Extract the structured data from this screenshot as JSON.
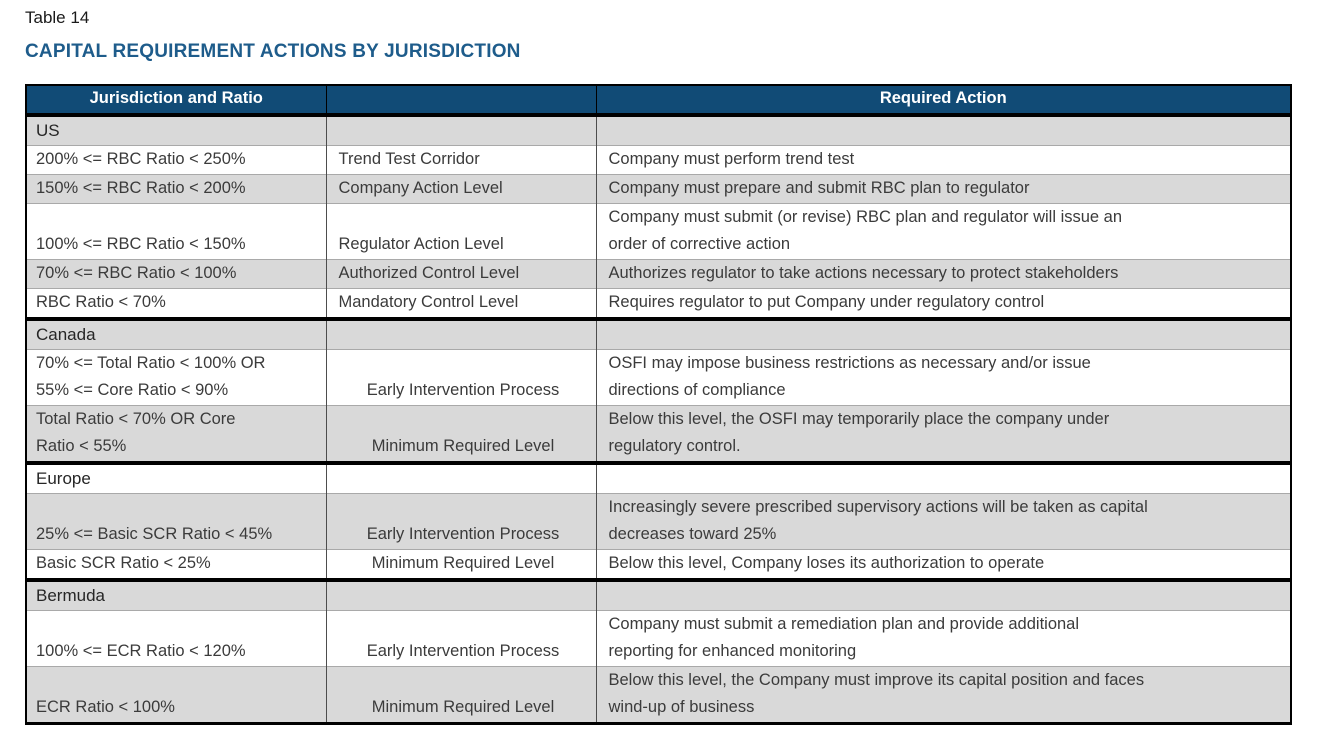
{
  "page": {
    "table_label": "Table 14",
    "title": "CAPITAL REQUIREMENT ACTIONS BY JURISDICTION"
  },
  "colors": {
    "header_bg": "#114B76",
    "title_color": "#1E5C8B",
    "row_shade": "#D9D9D9"
  },
  "table": {
    "headers": {
      "jurisdiction_ratio": "Jurisdiction and Ratio",
      "middle": "",
      "required_action": "Required Action"
    },
    "sections": [
      {
        "name": "US",
        "rows": [
          {
            "ratio": "200% <= RBC Ratio < 250%",
            "level": "Trend Test Corridor",
            "action": "Company must perform trend test",
            "tall": false
          },
          {
            "ratio": "150% <= RBC Ratio < 200%",
            "level": "Company Action Level",
            "action": "Company must prepare and submit RBC plan to regulator",
            "tall": false
          },
          {
            "ratio": "100% <= RBC Ratio < 150%",
            "level": "Regulator Action Level",
            "action": "Company must submit (or revise) RBC plan and regulator will issue an\norder of corrective action",
            "tall": true
          },
          {
            "ratio": "70% <= RBC Ratio < 100%",
            "level": "Authorized Control Level",
            "action": "Authorizes regulator to take actions necessary to protect stakeholders",
            "tall": false
          },
          {
            "ratio": "RBC Ratio < 70%",
            "level": "Mandatory Control Level",
            "action": "Requires regulator to put Company under regulatory control",
            "tall": false
          }
        ]
      },
      {
        "name": "Canada",
        "rows": [
          {
            "ratio": "70% <= Total Ratio < 100% OR\n55% <= Core Ratio < 90%",
            "level": "Early Intervention Process",
            "action": "OSFI may impose business restrictions as necessary and/or issue\ndirections of compliance",
            "tall": true
          },
          {
            "ratio": "Total Ratio < 70% OR Core\nRatio < 55%",
            "level": "Minimum Required Level",
            "action": "Below this level, the OSFI may temporarily place the company under\nregulatory control.",
            "tall": true
          }
        ]
      },
      {
        "name": "Europe",
        "rows": [
          {
            "ratio": "25% <= Basic SCR Ratio < 45%",
            "level": "Early Intervention Process",
            "action": "Increasingly severe prescribed supervisory actions will be taken as capital\ndecreases toward 25%",
            "tall": true
          },
          {
            "ratio": "Basic SCR Ratio < 25%",
            "level": "Minimum Required Level",
            "action": "Below this level, Company loses its authorization to operate",
            "tall": false
          }
        ]
      },
      {
        "name": "Bermuda",
        "rows": [
          {
            "ratio": "100% <= ECR Ratio < 120%",
            "level": "Early Intervention Process",
            "action": "Company must submit a remediation plan and provide additional\nreporting for enhanced monitoring",
            "tall": true
          },
          {
            "ratio": "ECR Ratio < 100%",
            "level": "Minimum Required Level",
            "action": "Below this level, the Company must improve its capital position and faces\nwind-up of business",
            "tall": true
          }
        ]
      }
    ]
  }
}
